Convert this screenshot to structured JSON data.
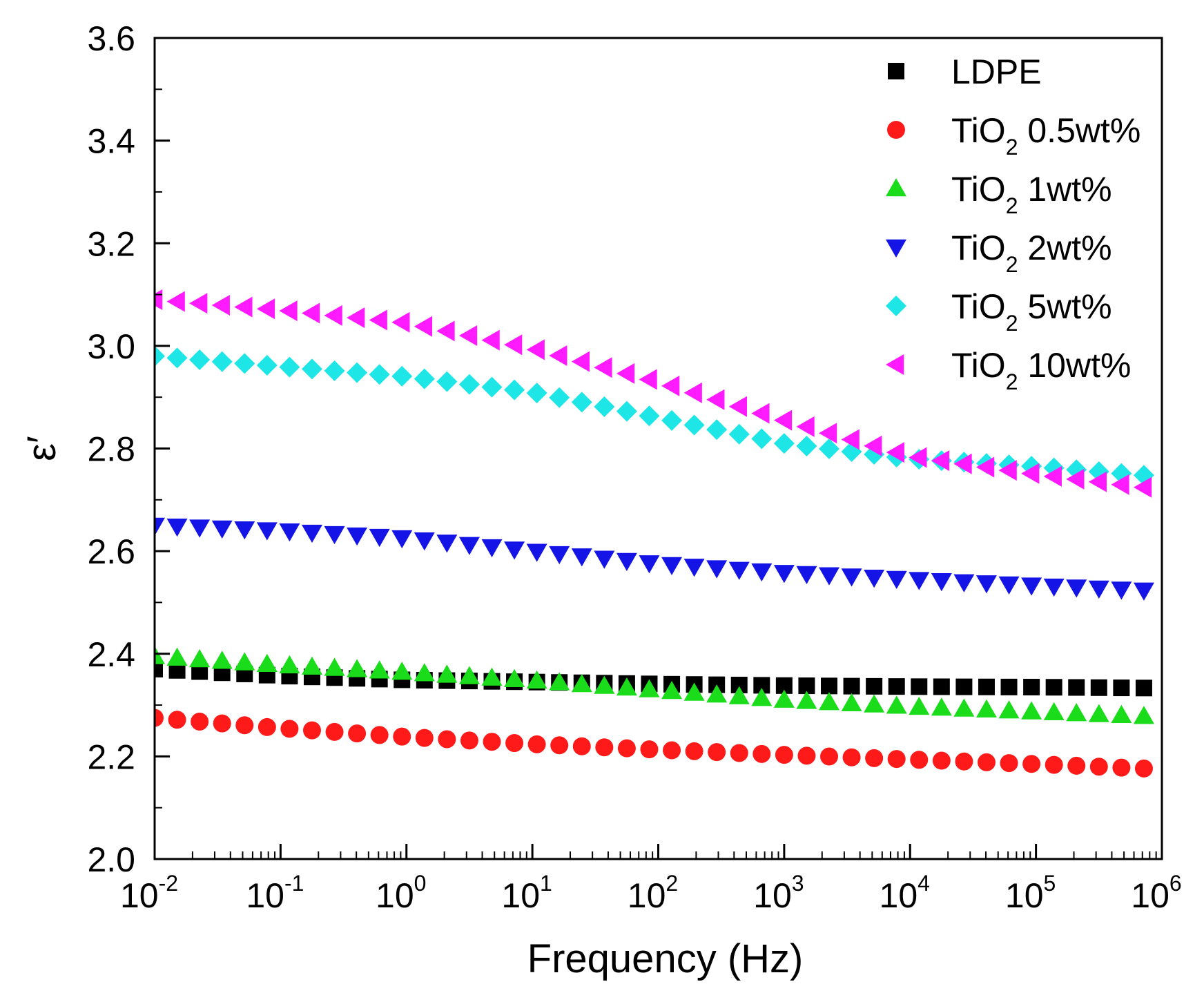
{
  "chart_data": {
    "type": "scatter",
    "xlabel": "Frequency (Hz)",
    "ylabel": "ε′",
    "xscale": "log",
    "xlim": [
      0.01,
      1000000
    ],
    "ylim": [
      2.0,
      3.6
    ],
    "x_ticks": [
      {
        "base": "10",
        "exp": "-2"
      },
      {
        "base": "10",
        "exp": "-1"
      },
      {
        "base": "10",
        "exp": "0"
      },
      {
        "base": "10",
        "exp": "1"
      },
      {
        "base": "10",
        "exp": "2"
      },
      {
        "base": "10",
        "exp": "3"
      },
      {
        "base": "10",
        "exp": "4"
      },
      {
        "base": "10",
        "exp": "5"
      },
      {
        "base": "10",
        "exp": "6"
      }
    ],
    "y_ticks": [
      "2.0",
      "2.2",
      "2.4",
      "2.6",
      "2.8",
      "3.0",
      "3.2",
      "3.4",
      "3.6"
    ],
    "legend_position": "top-right",
    "grid": false,
    "points_per_decade": 5.6,
    "series": [
      {
        "name": "LDPE",
        "label_main": "LDPE",
        "label_sub": "",
        "label_rest": "",
        "marker": "square",
        "color": "#000000",
        "profile_log_f": [
          -2,
          -1,
          0,
          1,
          2,
          3,
          4,
          5,
          6
        ],
        "profile_eps": [
          2.37,
          2.357,
          2.349,
          2.345,
          2.341,
          2.338,
          2.336,
          2.335,
          2.333
        ]
      },
      {
        "name": "TiO2 0.5wt%",
        "label_main": "TiO",
        "label_sub": "2",
        "label_rest": " 0.5wt%",
        "marker": "circle",
        "color": "#ff1a1a",
        "profile_log_f": [
          -2,
          -1,
          0,
          1,
          2,
          3,
          4,
          5,
          6
        ],
        "profile_eps": [
          2.275,
          2.255,
          2.238,
          2.224,
          2.213,
          2.203,
          2.194,
          2.185,
          2.175
        ]
      },
      {
        "name": "TiO2 1wt%",
        "label_main": "TiO",
        "label_sub": "2",
        "label_rest": " 1wt%",
        "marker": "triangle-up",
        "color": "#1adc1a",
        "profile_log_f": [
          -2,
          -1,
          0,
          1,
          2,
          3,
          4,
          5,
          6
        ],
        "profile_eps": [
          2.395,
          2.378,
          2.364,
          2.348,
          2.329,
          2.31,
          2.297,
          2.287,
          2.277
        ]
      },
      {
        "name": "TiO2 2wt%",
        "label_main": "TiO",
        "label_sub": "2",
        "label_rest": " 2wt%",
        "marker": "triangle-down",
        "color": "#1414e6",
        "profile_log_f": [
          -2,
          -1,
          0,
          1,
          2,
          3,
          4,
          5,
          6
        ],
        "profile_eps": [
          2.65,
          2.64,
          2.625,
          2.6,
          2.575,
          2.558,
          2.545,
          2.533,
          2.522
        ]
      },
      {
        "name": "TiO2 5wt%",
        "label_main": "TiO",
        "label_sub": "2",
        "label_rest": " 5wt%",
        "marker": "diamond",
        "color": "#1ee6e6",
        "profile_log_f": [
          -2,
          -1,
          0,
          1,
          2,
          3,
          4,
          5,
          6
        ],
        "profile_eps": [
          2.98,
          2.96,
          2.94,
          2.91,
          2.86,
          2.81,
          2.78,
          2.765,
          2.745
        ]
      },
      {
        "name": "TiO2 10wt%",
        "label_main": "TiO",
        "label_sub": "2",
        "label_rest": " 10wt%",
        "marker": "triangle-left",
        "color": "#ff1aff",
        "profile_log_f": [
          -2,
          -1,
          0,
          1,
          2,
          3,
          4,
          5,
          6
        ],
        "profile_eps": [
          3.09,
          3.07,
          3.045,
          2.995,
          2.93,
          2.855,
          2.785,
          2.75,
          2.72
        ]
      }
    ]
  }
}
